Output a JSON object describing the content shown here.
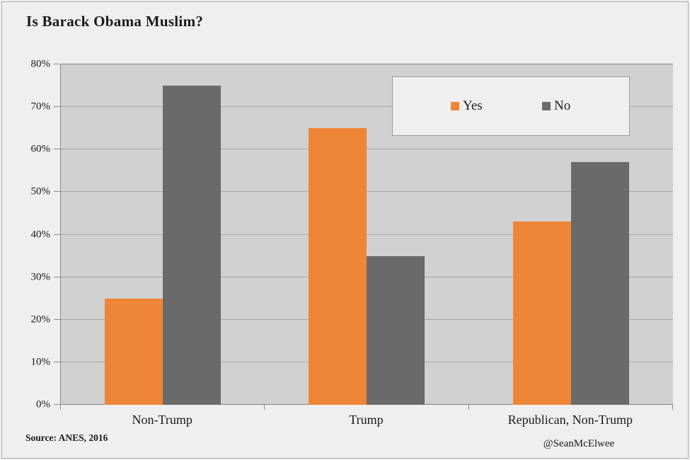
{
  "colors": {
    "page_bg": "#EFEFEF",
    "plot_bg": "#D1D1D1",
    "grid": "#A6A6A6",
    "axis": "#858585",
    "legend_bg": "#EFEFEF",
    "legend_border": "#9A9A9A",
    "text": "#1A1A1A",
    "series_yes": "#EF8536",
    "series_no": "#6A6A6A"
  },
  "chart_data": {
    "type": "bar",
    "title": "Is Barack Obama Muslim?",
    "categories": [
      "Non-Trump",
      "Trump",
      "Republican, Non-Trump"
    ],
    "series": [
      {
        "name": "Yes",
        "color": "#EF8536",
        "values": [
          25,
          65,
          43
        ]
      },
      {
        "name": "No",
        "color": "#6A6A6A",
        "values": [
          75,
          35,
          57
        ]
      }
    ],
    "xlabel": "",
    "ylabel": "",
    "ylim": [
      0,
      80
    ],
    "ytick_step": 10,
    "yticks": [
      "0%",
      "10%",
      "20%",
      "30%",
      "40%",
      "50%",
      "60%",
      "70%",
      "80%"
    ],
    "grid": true,
    "legend_entries": [
      "Yes",
      "No"
    ],
    "legend_position": "inside-top-right",
    "source": "Source: ANES, 2016",
    "credit": "@SeanMcElwee"
  }
}
